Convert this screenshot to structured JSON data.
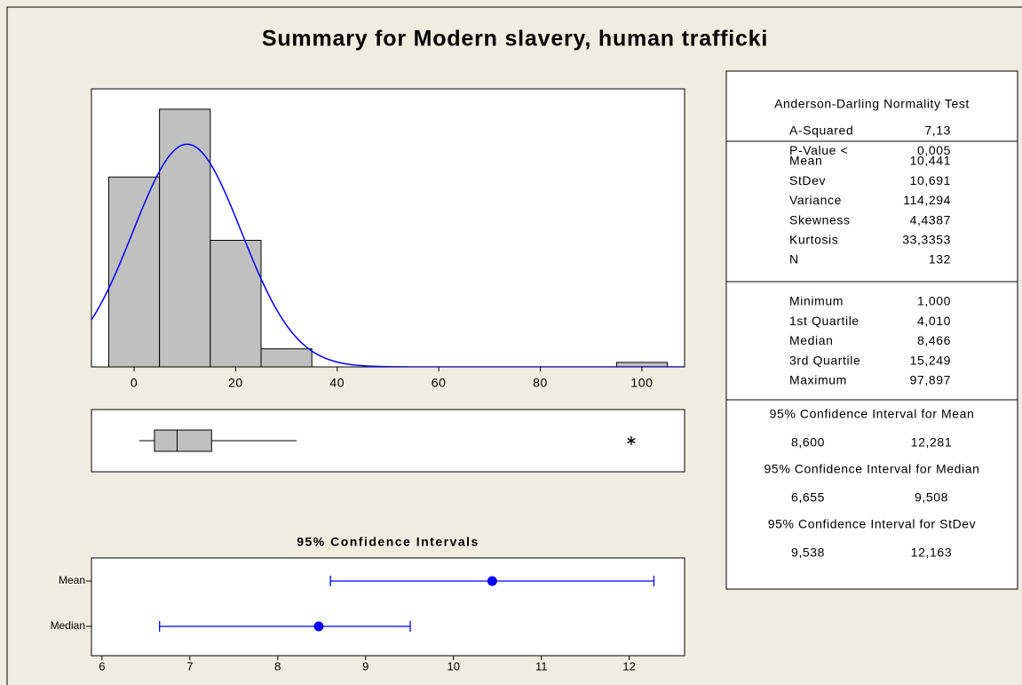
{
  "chart_data": [
    {
      "type": "histogram",
      "title": "Summary for Modern slavery, human trafficki",
      "bins": [
        -5,
        5,
        15,
        25,
        35,
        45,
        55,
        65,
        75,
        85,
        95,
        105
      ],
      "counts": [
        42,
        57,
        28,
        4,
        0,
        0,
        0,
        0,
        0,
        0,
        1
      ],
      "color": "#c0c0c0",
      "fit_color": "#0000ff",
      "xlim": [
        -8.4,
        108.4
      ],
      "xticks": [
        0,
        20,
        40,
        60,
        80,
        100
      ],
      "ylim": [
        0,
        61.5
      ]
    },
    {
      "type": "boxplot",
      "whisker_low": 1.0,
      "q1": 4.01,
      "median": 8.466,
      "q3": 15.249,
      "whisker_high": 32,
      "outliers": [
        97.897
      ],
      "color": "#c0c0c0"
    },
    {
      "type": "interval",
      "title": "95% Confidence Intervals",
      "categories": [
        "Mean",
        "Median"
      ],
      "values": [
        10.441,
        8.466
      ],
      "lower": [
        8.6,
        6.655
      ],
      "upper": [
        12.281,
        9.508
      ],
      "color": "#0000ff",
      "xlim": [
        5.88,
        12.63
      ],
      "xticks": [
        6,
        7,
        8,
        9,
        10,
        11,
        12
      ]
    }
  ],
  "table": {
    "sections": [
      {
        "header": "Anderson-Darling Normality Test",
        "rows": [
          [
            "A-Squared",
            "7,13"
          ],
          [
            "P-Value <",
            "0,005"
          ]
        ]
      },
      {
        "rows": [
          [
            "Mean",
            "10,441"
          ],
          [
            "StDev",
            "10,691"
          ],
          [
            "Variance",
            "114,294"
          ],
          [
            "Skewness",
            "4,4387"
          ],
          [
            "Kurtosis",
            "33,3353"
          ],
          [
            "N",
            "132"
          ]
        ]
      },
      {
        "rows": [
          [
            "Minimum",
            "1,000"
          ],
          [
            "1st Quartile",
            "4,010"
          ],
          [
            "Median",
            "8,466"
          ],
          [
            "3rd Quartile",
            "15,249"
          ],
          [
            "Maximum",
            "97,897"
          ]
        ]
      },
      {
        "intervals": [
          {
            "header": "95% Confidence Interval for Mean",
            "values": [
              "8,600",
              "12,281"
            ]
          },
          {
            "header": "95% Confidence Interval for Median",
            "values": [
              "6,655",
              "9,508"
            ]
          },
          {
            "header": "95% Confidence Interval for StDev",
            "values": [
              "9,538",
              "12,163"
            ]
          }
        ]
      }
    ]
  }
}
